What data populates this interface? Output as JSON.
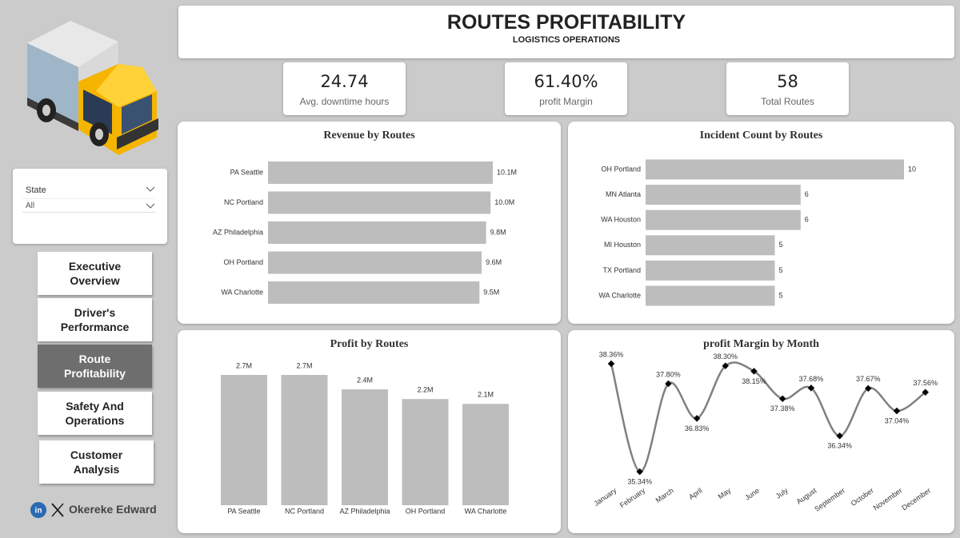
{
  "header": {
    "title": "ROUTES PROFITABILITY",
    "subtitle": "LOGISTICS OPERATIONS"
  },
  "kpis": [
    {
      "value": "24.74",
      "label": "Avg. downtime hours"
    },
    {
      "value": "61.40%",
      "label": "profit Margin"
    },
    {
      "value": "58",
      "label": "Total Routes"
    }
  ],
  "filter": {
    "label": "State",
    "selection": "All"
  },
  "nav": [
    "Executive Overview",
    "Driver's Performance",
    "Route Profitability",
    "Safety And Operations",
    "Customer Analysis"
  ],
  "author": "Okereke Edward",
  "chart_data": [
    {
      "type": "bar",
      "orientation": "horizontal",
      "title": "Revenue by Routes",
      "color": "#bdbdbd",
      "categories": [
        "PA Seattle",
        "NC Portland",
        "AZ Philadelphia",
        "OH Portland",
        "WA Charlotte"
      ],
      "values": [
        10100000,
        10000000,
        9800000,
        9600000,
        9500000
      ],
      "value_labels": [
        "10.1M",
        "10.0M",
        "9.8M",
        "9.6M",
        "9.5M"
      ]
    },
    {
      "type": "bar",
      "orientation": "horizontal",
      "title": "Incident Count by Routes",
      "color": "#bdbdbd",
      "categories": [
        "OH Portland",
        "MN Atlanta",
        "WA Houston",
        "MI Houston",
        "TX Portland",
        "WA Charlotte"
      ],
      "values": [
        10,
        6,
        6,
        5,
        5,
        5
      ]
    },
    {
      "type": "bar",
      "orientation": "vertical",
      "title": "Profit by Routes",
      "color": "#bdbdbd",
      "categories": [
        "PA Seattle",
        "NC Portland",
        "AZ Philadelphia",
        "OH Portland",
        "WA Charlotte"
      ],
      "values": [
        2700000,
        2700000,
        2400000,
        2200000,
        2100000
      ],
      "value_labels": [
        "2.7M",
        "2.7M",
        "2.4M",
        "2.2M",
        "2.1M"
      ]
    },
    {
      "type": "line",
      "title": "profit Margin by Month",
      "color": "#808080",
      "marker_color": "#000000",
      "categories": [
        "January",
        "February",
        "March",
        "April",
        "May",
        "June",
        "July",
        "August",
        "September",
        "October",
        "November",
        "December"
      ],
      "values": [
        38.36,
        35.34,
        37.8,
        36.83,
        38.3,
        38.15,
        37.38,
        37.68,
        36.34,
        37.67,
        37.04,
        37.56
      ],
      "value_labels": [
        "38.36%",
        "35.34%",
        "37.80%",
        "36.83%",
        "38.30%",
        "38.15%",
        "37.38%",
        "37.68%",
        "36.34%",
        "37.67%",
        "37.04%",
        "37.56%"
      ]
    }
  ]
}
